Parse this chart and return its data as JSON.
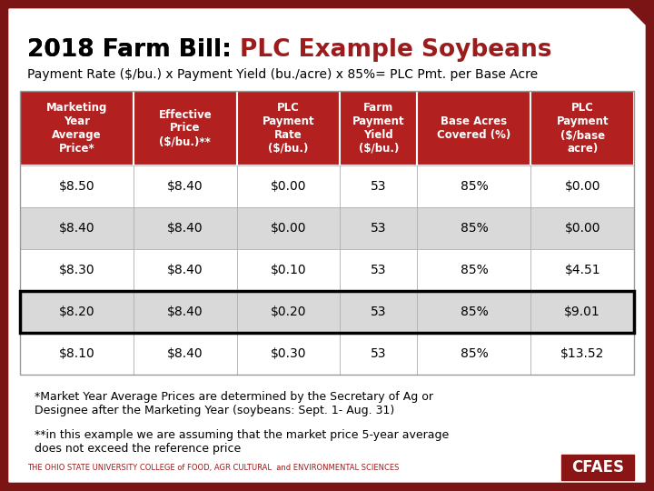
{
  "title_black": "2018 Farm Bill: ",
  "title_red": "PLC Example Soybeans",
  "subtitle": "Payment Rate ($/bu.) x Payment Yield (bu./acre) x 85%= PLC Pmt. per Base Acre",
  "bg_color": "#7B1515",
  "card_bg": "#FFFFFF",
  "header_bg": "#B22020",
  "header_text_color": "#FFFFFF",
  "alt_row_color": "#D9D9D9",
  "normal_row_color": "#FFFFFF",
  "columns": [
    "Marketing\nYear\nAverage\nPrice*",
    "Effective\nPrice\n($/bu.)**",
    "PLC\nPayment\nRate\n($/bu.)",
    "Farm\nPayment\nYield\n($/bu.)",
    "Base Acres\nCovered (%)",
    "PLC\nPayment\n($/base\nacre)"
  ],
  "rows": [
    [
      "$8.50",
      "$8.40",
      "$0.00",
      "53",
      "85%",
      "$0.00"
    ],
    [
      "$8.40",
      "$8.40",
      "$0.00",
      "53",
      "85%",
      "$0.00"
    ],
    [
      "$8.30",
      "$8.40",
      "$0.10",
      "53",
      "85%",
      "$4.51"
    ],
    [
      "$8.20",
      "$8.40",
      "$0.20",
      "53",
      "85%",
      "$9.01"
    ],
    [
      "$8.10",
      "$8.40",
      "$0.30",
      "53",
      "85%",
      "$13.52"
    ]
  ],
  "highlight_row_index": 3,
  "footnote1": "*Market Year Average Prices are determined by the Secretary of Ag or\nDesignee after the Marketing Year (soybeans: Sept. 1- Aug. 31)",
  "footnote2": "**in this example we are assuming that the market price 5-year average\ndoes not exceed the reference price",
  "footer_text": "THE OHIO STATE UNIVERSITY COLLEGE of FOOD, AGR CULTURAL  and ENVIRONMENTAL SCIENCES",
  "cfaes_text": "CFAES",
  "title_fontsize": 19,
  "subtitle_fontsize": 10,
  "header_fontsize": 8.5,
  "cell_fontsize": 10,
  "footnote_fontsize": 9,
  "footer_fontsize": 6
}
